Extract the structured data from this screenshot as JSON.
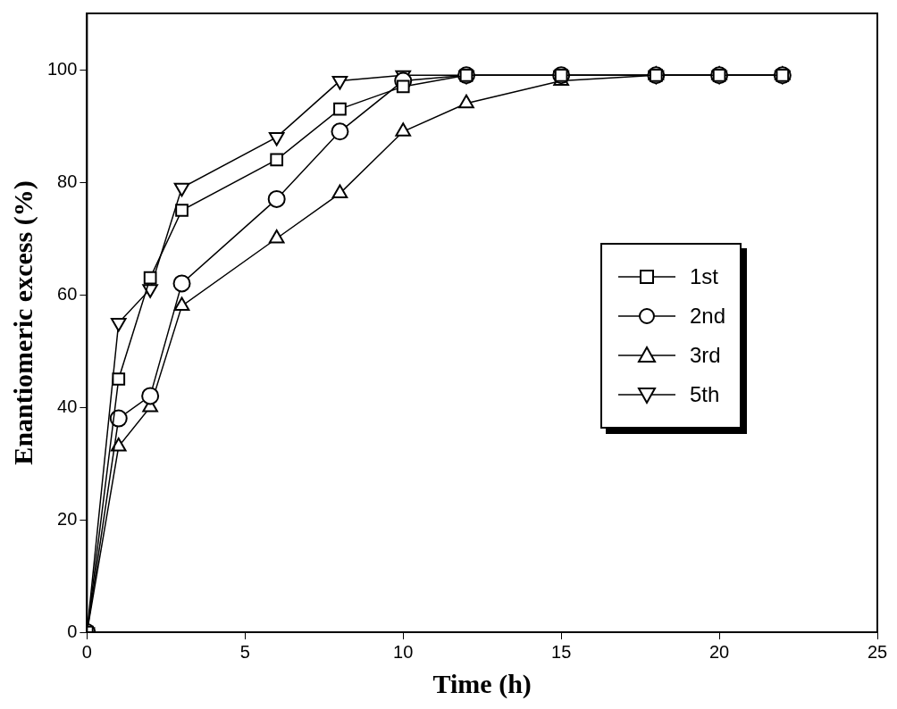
{
  "chart_data": {
    "type": "line",
    "x_label": "Time (h)",
    "y_label": "Enantiomeric excess (%)",
    "x": [
      0,
      1,
      2,
      3,
      6,
      8,
      10,
      12,
      15,
      18,
      20,
      22
    ],
    "series": [
      {
        "name": "1st",
        "color": "#000000",
        "marker": "square",
        "values": [
          0,
          45,
          63,
          75,
          84,
          93,
          97,
          99,
          99,
          99,
          99,
          99
        ]
      },
      {
        "name": "2nd",
        "color": "#000000",
        "marker": "circle",
        "values": [
          0,
          38,
          42,
          62,
          77,
          89,
          98,
          99,
          99,
          99,
          99,
          99
        ]
      },
      {
        "name": "3rd",
        "color": "#000000",
        "marker": "triangle",
        "values": [
          0,
          33,
          40,
          58,
          70,
          78,
          89,
          94,
          98,
          99,
          99,
          99
        ]
      },
      {
        "name": "5th",
        "color": "#000000",
        "marker": "triangle_down",
        "values": [
          0,
          55,
          61,
          79,
          88,
          98,
          99,
          99,
          99,
          99,
          99,
          99
        ]
      }
    ],
    "xlim": [
      0,
      25
    ],
    "xticks": [
      0,
      5,
      10,
      15,
      20,
      25
    ],
    "ylim": [
      0,
      110
    ],
    "yticks": [
      0,
      20,
      40,
      60,
      80,
      100
    ],
    "grid": false,
    "legend": "right"
  }
}
